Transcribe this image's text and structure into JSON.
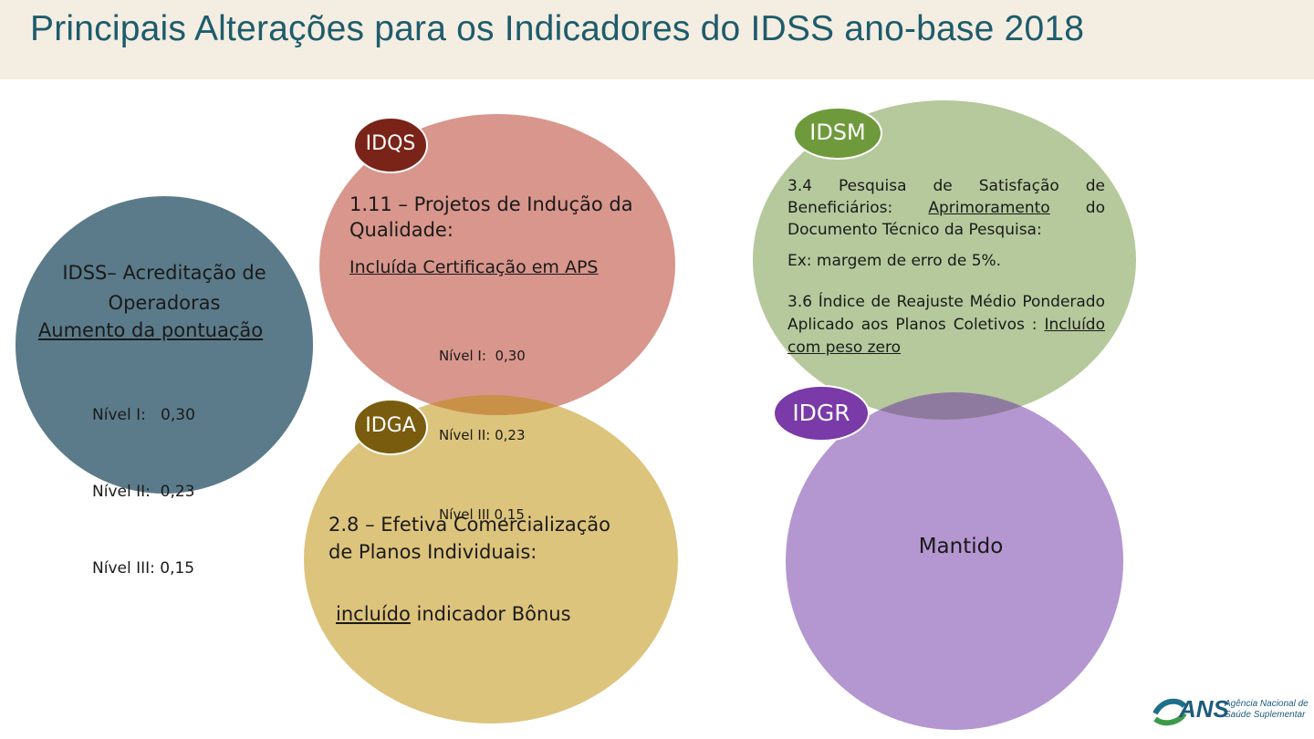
{
  "title": "Principais Alterações para os Indicadores do IDSS ano-base 2018",
  "colors": {
    "header_bg": "#f4ede1",
    "title": "#1d5c6c",
    "acreditacao_circle": "#5b7b8a",
    "idqs_circle": "#d8968c",
    "idqs_badge": "#7a2318",
    "idsm_circle": "#b5c99c",
    "idsm_badge": "#6e9a3c",
    "idga_circle": "#ddc47c",
    "idga_badge": "#7a5c0e",
    "idgr_circle": "#b496d0",
    "idgr_badge": "#7a3aa8"
  },
  "acreditacao": {
    "heading": "IDSS– Acreditação de Operadoras",
    "subheading": "Aumento da pontuação",
    "levels": [
      "Nível I:   0,30",
      "Nível II:  0,23",
      "Nível III: 0,15"
    ]
  },
  "idqs": {
    "badge": "IDQS",
    "heading": "1.11 – Projetos de Indução da Qualidade:",
    "change": "Incluída Certificação em APS",
    "levels": [
      "Nível I:  0,30",
      "Nível II: 0,23",
      "Nível III 0,15"
    ]
  },
  "idsm": {
    "badge": "IDSM",
    "item1_prefix": "3.4 Pesquisa de Satisfação de Beneficiários: ",
    "item1_underlined": "Aprimoramento",
    "item1_suffix": " do Documento Técnico da Pesquisa:",
    "example": "Ex: margem de erro de 5%.",
    "item2_prefix": "3.6 Índice de Reajuste Médio Ponderado Aplicado aos Planos Coletivos : ",
    "item2_underlined": "Incluído com peso zero"
  },
  "idga": {
    "badge": "IDGA",
    "heading": "2.8 – Efetiva Comercialização de Planos Individuais:",
    "change_underlined": "incluído",
    "change_rest": " indicador Bônus"
  },
  "idgr": {
    "badge": "IDGR",
    "status": "Mantido"
  },
  "logo": {
    "abbr": "ANS",
    "line1": "Agência Nacional de",
    "line2": "Saúde Suplementar"
  }
}
